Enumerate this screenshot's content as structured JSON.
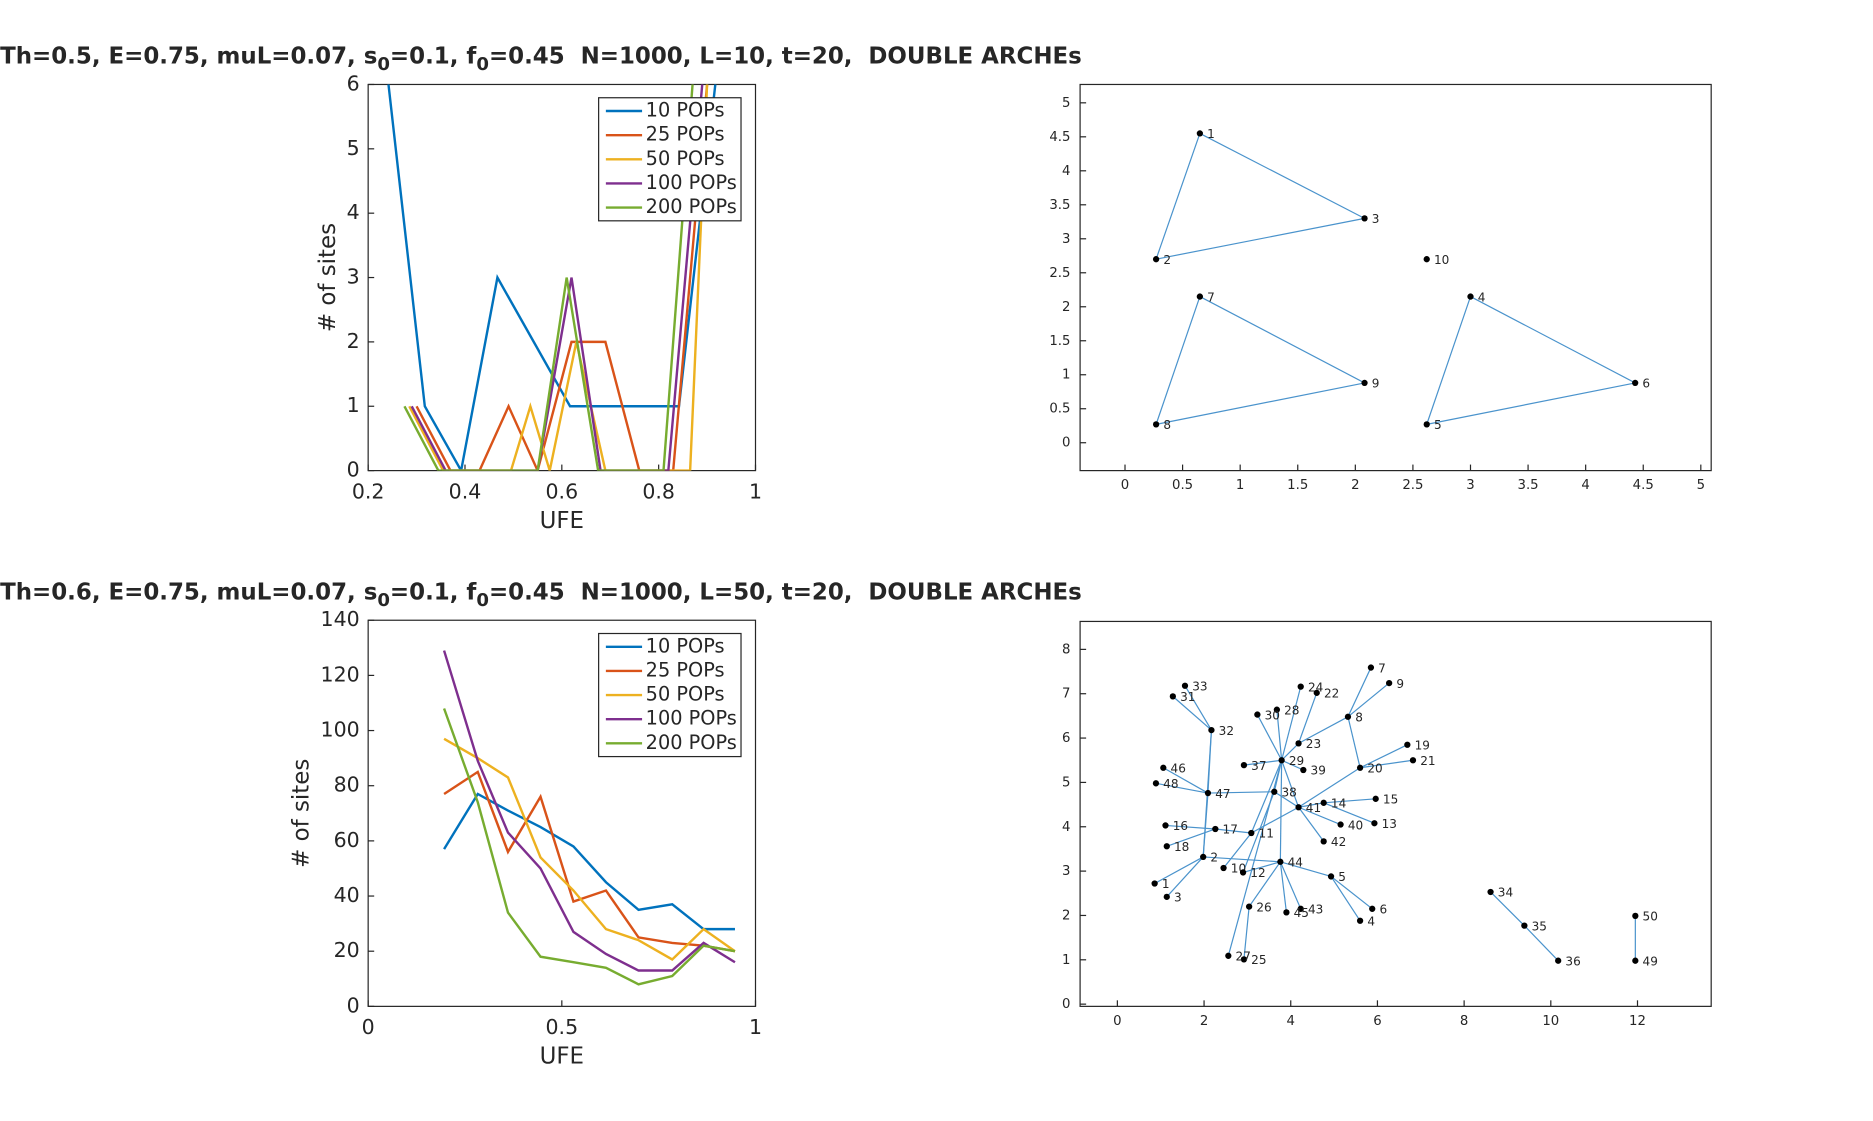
{
  "chart_data": [
    {
      "type": "line",
      "title": [
        {
          "text": "Th=0.5, E=0.75, muL=0.07, s"
        },
        {
          "text": "0",
          "sub": true
        },
        {
          "text": "=0.1, f"
        },
        {
          "text": "0",
          "sub": true
        },
        {
          "text": "=0.45  N=1000, L=10, t=20,  DOUBLE ARCHEs"
        }
      ],
      "xlabel": "UFE",
      "ylabel": "# of sites",
      "xlim": [
        0.2,
        1
      ],
      "ylim": [
        0,
        6
      ],
      "xticks": [
        0.2,
        0.4,
        0.6,
        0.8,
        1
      ],
      "yticks": [
        0,
        1,
        2,
        3,
        4,
        5,
        6
      ],
      "legend": "northeast",
      "series": [
        {
          "name": "10 POPs",
          "color": "#0072BD",
          "x": [
            0.242,
            0.317,
            0.392,
            0.467,
            0.542,
            0.617,
            0.692,
            0.767,
            0.842,
            0.917
          ],
          "values": [
            6,
            1,
            0,
            3,
            2,
            1,
            1,
            1,
            1,
            6
          ]
        },
        {
          "name": "25 POPs",
          "color": "#D95319",
          "x": [
            0.3,
            0.37,
            0.43,
            0.49,
            0.55,
            0.62,
            0.69,
            0.76,
            0.83,
            0.9
          ],
          "values": [
            1,
            0,
            0,
            1,
            0,
            2,
            2,
            0,
            0,
            6
          ]
        },
        {
          "name": "50 POPs",
          "color": "#EDB120",
          "x": [
            0.285,
            0.355,
            0.425,
            0.495,
            0.535,
            0.575,
            0.63,
            0.69,
            0.76,
            0.83,
            0.865,
            0.9
          ],
          "values": [
            1,
            0,
            0,
            0,
            1,
            0,
            2,
            0,
            0,
            0,
            0,
            6
          ]
        },
        {
          "name": "100 POPs",
          "color": "#7E2F8E",
          "x": [
            0.29,
            0.36,
            0.43,
            0.55,
            0.62,
            0.68,
            0.75,
            0.82,
            0.89
          ],
          "values": [
            1,
            0,
            0,
            0,
            3,
            0,
            0,
            0,
            6
          ]
        },
        {
          "name": "200 POPs",
          "color": "#77AC30",
          "x": [
            0.275,
            0.345,
            0.42,
            0.55,
            0.61,
            0.675,
            0.74,
            0.81,
            0.87
          ],
          "values": [
            1,
            0,
            0,
            0,
            3,
            0,
            0,
            0,
            6
          ]
        }
      ]
    },
    {
      "type": "network",
      "xlim": [
        -0.39,
        5.09
      ],
      "ylim": [
        -0.41,
        5.27
      ],
      "xticks": [
        0,
        0.5,
        1,
        1.5,
        2,
        2.5,
        3,
        3.5,
        4,
        4.5,
        5
      ],
      "yticks": [
        0,
        0.5,
        1,
        1.5,
        2,
        2.5,
        3,
        3.5,
        4,
        4.5,
        5
      ],
      "edge_color": "#4a93cc",
      "node_color": "#000000",
      "nodes": [
        {
          "label": "1",
          "x": 0.65,
          "y": 4.55
        },
        {
          "label": "2",
          "x": 0.27,
          "y": 2.7
        },
        {
          "label": "3",
          "x": 2.08,
          "y": 3.3
        },
        {
          "label": "4",
          "x": 3.0,
          "y": 2.15
        },
        {
          "label": "5",
          "x": 2.62,
          "y": 0.27
        },
        {
          "label": "6",
          "x": 4.43,
          "y": 0.88
        },
        {
          "label": "7",
          "x": 0.65,
          "y": 2.15
        },
        {
          "label": "8",
          "x": 0.27,
          "y": 0.27
        },
        {
          "label": "9",
          "x": 2.08,
          "y": 0.88
        },
        {
          "label": "10",
          "x": 2.62,
          "y": 2.7
        }
      ],
      "edges": [
        [
          "1",
          "2"
        ],
        [
          "1",
          "3"
        ],
        [
          "2",
          "3"
        ],
        [
          "7",
          "8"
        ],
        [
          "7",
          "9"
        ],
        [
          "8",
          "9"
        ],
        [
          "4",
          "5"
        ],
        [
          "4",
          "6"
        ],
        [
          "5",
          "6"
        ]
      ]
    },
    {
      "type": "line",
      "title": [
        {
          "text": "Th=0.6, E=0.75, muL=0.07, s"
        },
        {
          "text": "0",
          "sub": true
        },
        {
          "text": "=0.1, f"
        },
        {
          "text": "0",
          "sub": true
        },
        {
          "text": "=0.45  N=1000, L=50, t=20,  DOUBLE ARCHEs"
        }
      ],
      "xlabel": "UFE",
      "ylabel": "# of sites",
      "xlim": [
        0,
        1
      ],
      "ylim": [
        0,
        140
      ],
      "xticks": [
        0,
        0.5,
        1
      ],
      "yticks": [
        0,
        20,
        40,
        60,
        80,
        100,
        120,
        140
      ],
      "legend": "northeast",
      "x": [
        0.196,
        0.283,
        0.361,
        0.445,
        0.53,
        0.614,
        0.698,
        0.785,
        0.866,
        0.947
      ],
      "series": [
        {
          "name": "10 POPs",
          "color": "#0072BD",
          "values": [
            57,
            77,
            71,
            65,
            58,
            45,
            35,
            37,
            28,
            28
          ]
        },
        {
          "name": "25 POPs",
          "color": "#D95319",
          "values": [
            77,
            85,
            56,
            76,
            38,
            42,
            25,
            23,
            22,
            20
          ]
        },
        {
          "name": "50 POPs",
          "color": "#EDB120",
          "values": [
            97,
            90,
            83,
            54,
            42,
            28,
            24,
            17,
            28,
            20
          ]
        },
        {
          "name": "100 POPs",
          "color": "#7E2F8E",
          "values": [
            129,
            89,
            63,
            50,
            27,
            19,
            13,
            13,
            23,
            16
          ]
        },
        {
          "name": "200 POPs",
          "color": "#77AC30",
          "values": [
            108,
            74,
            34,
            18,
            16,
            14,
            8,
            11,
            22,
            20
          ]
        }
      ]
    },
    {
      "type": "network",
      "xlim": [
        -0.86,
        13.7
      ],
      "ylim": [
        -0.05,
        8.63
      ],
      "xticks": [
        0,
        2,
        4,
        6,
        8,
        10,
        12
      ],
      "yticks": [
        0,
        1,
        2,
        3,
        4,
        5,
        6,
        7,
        8
      ],
      "edge_color": "#4a93cc",
      "node_color": "#000000",
      "nodes": [
        {
          "label": "1",
          "x": 0.86,
          "y": 2.72
        },
        {
          "label": "2",
          "x": 1.98,
          "y": 3.32
        },
        {
          "label": "3",
          "x": 1.14,
          "y": 2.42
        },
        {
          "label": "4",
          "x": 5.6,
          "y": 1.88
        },
        {
          "label": "5",
          "x": 4.93,
          "y": 2.88
        },
        {
          "label": "6",
          "x": 5.88,
          "y": 2.15
        },
        {
          "label": "7",
          "x": 5.85,
          "y": 7.59
        },
        {
          "label": "8",
          "x": 5.32,
          "y": 6.48
        },
        {
          "label": "9",
          "x": 6.27,
          "y": 7.24
        },
        {
          "label": "10",
          "x": 2.45,
          "y": 3.07
        },
        {
          "label": "11",
          "x": 3.09,
          "y": 3.86
        },
        {
          "label": "12",
          "x": 2.9,
          "y": 2.97
        },
        {
          "label": "13",
          "x": 5.93,
          "y": 4.08
        },
        {
          "label": "14",
          "x": 4.76,
          "y": 4.54
        },
        {
          "label": "15",
          "x": 5.96,
          "y": 4.63
        },
        {
          "label": "16",
          "x": 1.11,
          "y": 4.03
        },
        {
          "label": "17",
          "x": 2.26,
          "y": 3.95
        },
        {
          "label": "18",
          "x": 1.14,
          "y": 3.56
        },
        {
          "label": "19",
          "x": 6.69,
          "y": 5.85
        },
        {
          "label": "20",
          "x": 5.6,
          "y": 5.33
        },
        {
          "label": "21",
          "x": 6.82,
          "y": 5.5
        },
        {
          "label": "22",
          "x": 4.6,
          "y": 7.02
        },
        {
          "label": "23",
          "x": 4.18,
          "y": 5.88
        },
        {
          "label": "24",
          "x": 4.23,
          "y": 7.16
        },
        {
          "label": "25",
          "x": 2.92,
          "y": 1.01
        },
        {
          "label": "26",
          "x": 3.04,
          "y": 2.2
        },
        {
          "label": "27",
          "x": 2.56,
          "y": 1.09
        },
        {
          "label": "28",
          "x": 3.68,
          "y": 6.64
        },
        {
          "label": "29",
          "x": 3.79,
          "y": 5.5
        },
        {
          "label": "30",
          "x": 3.23,
          "y": 6.53
        },
        {
          "label": "31",
          "x": 1.28,
          "y": 6.94
        },
        {
          "label": "32",
          "x": 2.17,
          "y": 6.18
        },
        {
          "label": "33",
          "x": 1.56,
          "y": 7.18
        },
        {
          "label": "34",
          "x": 8.61,
          "y": 2.53
        },
        {
          "label": "35",
          "x": 9.39,
          "y": 1.77
        },
        {
          "label": "36",
          "x": 10.17,
          "y": 0.98
        },
        {
          "label": "37",
          "x": 2.92,
          "y": 5.39
        },
        {
          "label": "38",
          "x": 3.62,
          "y": 4.79
        },
        {
          "label": "39",
          "x": 4.29,
          "y": 5.28
        },
        {
          "label": "40",
          "x": 5.15,
          "y": 4.05
        },
        {
          "label": "41",
          "x": 4.18,
          "y": 4.44
        },
        {
          "label": "42",
          "x": 4.76,
          "y": 3.67
        },
        {
          "label": "43",
          "x": 4.23,
          "y": 2.15
        },
        {
          "label": "44",
          "x": 3.76,
          "y": 3.21
        },
        {
          "label": "45",
          "x": 3.9,
          "y": 2.07
        },
        {
          "label": "46",
          "x": 1.06,
          "y": 5.33
        },
        {
          "label": "47",
          "x": 2.09,
          "y": 4.76
        },
        {
          "label": "48",
          "x": 0.89,
          "y": 4.98
        },
        {
          "label": "49",
          "x": 11.95,
          "y": 0.98
        },
        {
          "label": "50",
          "x": 11.95,
          "y": 1.99
        }
      ],
      "edges": [
        [
          "1",
          "2"
        ],
        [
          "2",
          "3"
        ],
        [
          "2",
          "47"
        ],
        [
          "2",
          "44"
        ],
        [
          "2",
          "32"
        ],
        [
          "10",
          "11"
        ],
        [
          "11",
          "29"
        ],
        [
          "11",
          "17"
        ],
        [
          "11",
          "41"
        ],
        [
          "12",
          "38"
        ],
        [
          "16",
          "17"
        ],
        [
          "18",
          "17"
        ],
        [
          "44",
          "26"
        ],
        [
          "44",
          "5"
        ],
        [
          "44",
          "43"
        ],
        [
          "44",
          "45"
        ],
        [
          "44",
          "29"
        ],
        [
          "44",
          "12"
        ],
        [
          "5",
          "4"
        ],
        [
          "5",
          "6"
        ],
        [
          "26",
          "25"
        ],
        [
          "27",
          "29"
        ],
        [
          "29",
          "23"
        ],
        [
          "29",
          "24"
        ],
        [
          "29",
          "28"
        ],
        [
          "29",
          "30"
        ],
        [
          "29",
          "37"
        ],
        [
          "29",
          "38"
        ],
        [
          "29",
          "39"
        ],
        [
          "29",
          "41"
        ],
        [
          "23",
          "8"
        ],
        [
          "23",
          "22"
        ],
        [
          "41",
          "14"
        ],
        [
          "41",
          "20"
        ],
        [
          "41",
          "40"
        ],
        [
          "41",
          "42"
        ],
        [
          "41",
          "38"
        ],
        [
          "38",
          "47"
        ],
        [
          "8",
          "7"
        ],
        [
          "8",
          "9"
        ],
        [
          "8",
          "20"
        ],
        [
          "20",
          "19"
        ],
        [
          "20",
          "21"
        ],
        [
          "14",
          "15"
        ],
        [
          "14",
          "13"
        ],
        [
          "32",
          "31"
        ],
        [
          "32",
          "33"
        ],
        [
          "32",
          "47"
        ],
        [
          "47",
          "46"
        ],
        [
          "47",
          "48"
        ],
        [
          "34",
          "35"
        ],
        [
          "35",
          "36"
        ],
        [
          "49",
          "50"
        ]
      ]
    }
  ]
}
